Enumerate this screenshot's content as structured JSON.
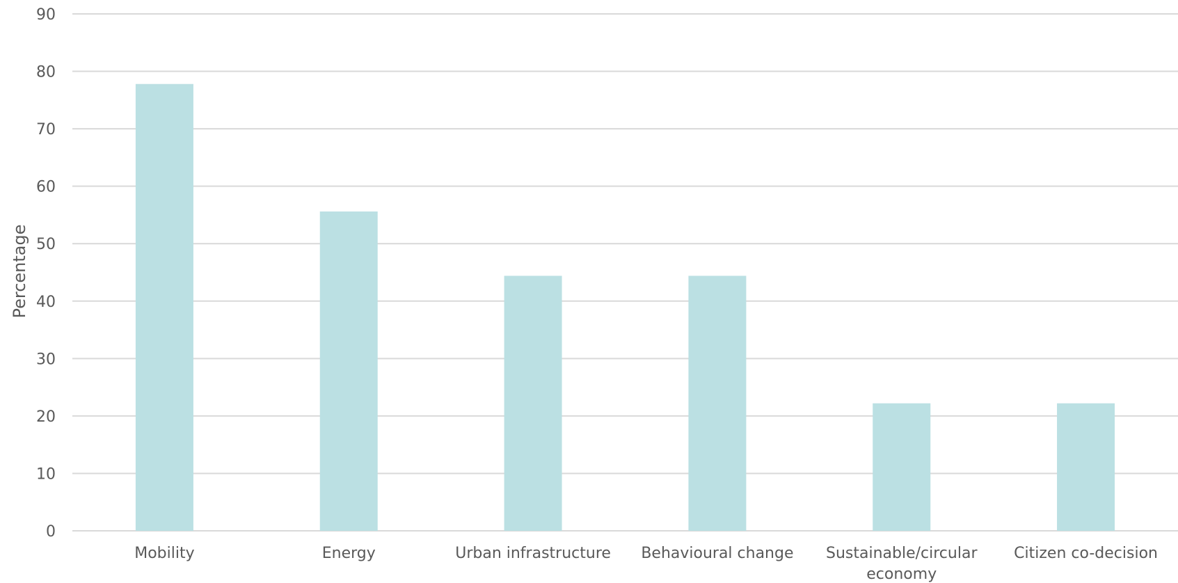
{
  "chart_data": {
    "type": "bar",
    "title": "",
    "xlabel": "",
    "ylabel": "Percentage",
    "ylim": [
      0,
      90
    ],
    "yticks": [
      "0",
      "10",
      "20",
      "30",
      "40",
      "50",
      "60",
      "70",
      "80",
      "90"
    ],
    "grid": true,
    "legend": "none",
    "bar_color": "#bbe0e3",
    "categories": [
      [
        "Mobility"
      ],
      [
        "Energy"
      ],
      [
        "Urban infrastructure"
      ],
      [
        "Behavioural change"
      ],
      [
        "Sustainable/circular",
        "economy"
      ],
      [
        "Citizen co-decision"
      ]
    ],
    "values": [
      77.8,
      55.6,
      44.4,
      44.4,
      22.2,
      22.2
    ]
  }
}
